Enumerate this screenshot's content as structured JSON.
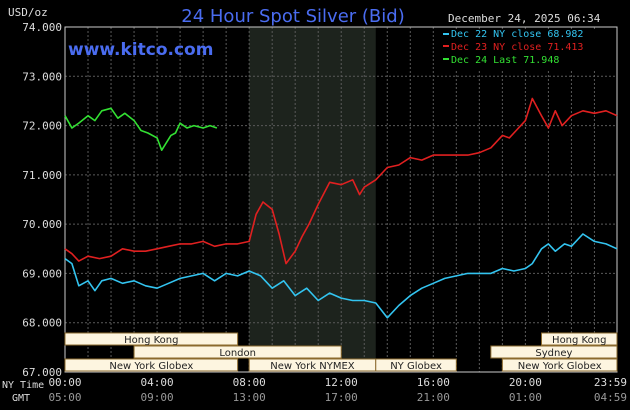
{
  "chart_data": {
    "type": "line",
    "title": "24 Hour Spot Silver (Bid)",
    "watermark": "www.kitco.com",
    "timestamp": "December 24, 2025 06:34",
    "ylabel": "USD/oz",
    "ylim": [
      67.0,
      74.0
    ],
    "y_ticks": [
      "74.000",
      "73.000",
      "72.000",
      "71.000",
      "70.000",
      "69.000",
      "68.000",
      "67.000"
    ],
    "x_ticks": [
      "00:00",
      "04:00",
      "08:00",
      "12:00",
      "16:00",
      "20:00",
      "23:59"
    ],
    "x_ticks_gmt": [
      "05:00",
      "09:00",
      "13:00",
      "17:00",
      "21:00",
      "01:00",
      "04:59"
    ],
    "row_labels": {
      "ny": "NY Time",
      "gmt": "GMT"
    },
    "grid": true,
    "legend_position": "top-right",
    "colors": {
      "bg": "#000000",
      "grid": "#5a5a5a",
      "plot_border": "#cccccc",
      "title": "#4a6cf0",
      "watermark": "#4a6cf0",
      "axis_text": "#dddddd",
      "session_fill": "#fdf5e0",
      "session_text": "#222222",
      "session_border": "#8b6a2e",
      "nymex_shade": "#1d231d"
    },
    "series": [
      {
        "name": "Dec 22 NY close 68.982",
        "color": "#33c4f0",
        "x": [
          0.0,
          0.3,
          0.6,
          1.0,
          1.3,
          1.6,
          2.0,
          2.5,
          3.0,
          3.5,
          4.0,
          4.5,
          5.0,
          5.5,
          6.0,
          6.5,
          7.0,
          7.5,
          8.0,
          8.5,
          9.0,
          9.5,
          10.0,
          10.5,
          11.0,
          11.5,
          12.0,
          12.5,
          13.0,
          13.5,
          14.0,
          14.5,
          15.0,
          15.5,
          16.0,
          16.5,
          17.0,
          17.5,
          18.0,
          18.5,
          19.0,
          19.5,
          20.0,
          20.3,
          20.7,
          21.0,
          21.3,
          21.7,
          22.0,
          22.5,
          23.0,
          23.5,
          23.98
        ],
        "y": [
          69.3,
          69.2,
          68.75,
          68.85,
          68.65,
          68.85,
          68.9,
          68.8,
          68.85,
          68.75,
          68.7,
          68.8,
          68.9,
          68.95,
          69.0,
          68.85,
          69.0,
          68.95,
          69.05,
          68.95,
          68.7,
          68.85,
          68.55,
          68.7,
          68.45,
          68.6,
          68.5,
          68.45,
          68.45,
          68.4,
          68.1,
          68.35,
          68.55,
          68.7,
          68.8,
          68.9,
          68.95,
          69.0,
          69.0,
          69.0,
          69.1,
          69.05,
          69.1,
          69.2,
          69.5,
          69.6,
          69.45,
          69.6,
          69.55,
          69.8,
          69.65,
          69.6,
          69.5
        ]
      },
      {
        "name": "Dec 23 NY close 71.413",
        "color": "#e02020",
        "x": [
          0.0,
          0.3,
          0.6,
          1.0,
          1.5,
          2.0,
          2.5,
          3.0,
          3.5,
          4.0,
          4.5,
          5.0,
          5.5,
          6.0,
          6.5,
          7.0,
          7.5,
          8.0,
          8.3,
          8.6,
          9.0,
          9.3,
          9.6,
          10.0,
          10.3,
          10.6,
          11.0,
          11.5,
          12.0,
          12.5,
          12.8,
          13.0,
          13.5,
          14.0,
          14.5,
          15.0,
          15.5,
          16.0,
          16.5,
          17.0,
          17.5,
          18.0,
          18.5,
          19.0,
          19.3,
          19.6,
          20.0,
          20.3,
          20.7,
          21.0,
          21.3,
          21.6,
          22.0,
          22.5,
          23.0,
          23.5,
          23.98
        ],
        "y": [
          69.5,
          69.4,
          69.25,
          69.35,
          69.3,
          69.35,
          69.5,
          69.45,
          69.45,
          69.5,
          69.55,
          69.6,
          69.6,
          69.65,
          69.55,
          69.6,
          69.6,
          69.65,
          70.2,
          70.45,
          70.3,
          69.8,
          69.2,
          69.45,
          69.75,
          70.0,
          70.4,
          70.85,
          70.8,
          70.9,
          70.6,
          70.75,
          70.9,
          71.15,
          71.2,
          71.35,
          71.3,
          71.4,
          71.4,
          71.4,
          71.4,
          71.45,
          71.55,
          71.8,
          71.75,
          71.9,
          72.1,
          72.55,
          72.2,
          71.95,
          72.3,
          72.0,
          72.2,
          72.3,
          72.25,
          72.3,
          72.2
        ]
      },
      {
        "name": "Dec 24 Last 71.948",
        "color": "#33e033",
        "x": [
          0.0,
          0.3,
          0.6,
          1.0,
          1.3,
          1.6,
          2.0,
          2.3,
          2.6,
          3.0,
          3.3,
          3.6,
          4.0,
          4.2,
          4.4,
          4.6,
          4.8,
          5.0,
          5.3,
          5.6,
          6.0,
          6.3,
          6.6
        ],
        "y": [
          72.2,
          71.95,
          72.05,
          72.2,
          72.1,
          72.3,
          72.35,
          72.15,
          72.25,
          72.1,
          71.9,
          71.85,
          71.75,
          71.5,
          71.65,
          71.8,
          71.85,
          72.05,
          71.95,
          72.0,
          71.95,
          72.0,
          71.95
        ]
      }
    ],
    "sessions": [
      {
        "label": "Hong Kong",
        "start": 0.0,
        "end": 7.5,
        "row": 0
      },
      {
        "label": "Hong Kong",
        "start": 20.7,
        "end": 23.98,
        "row": 0
      },
      {
        "label": "London",
        "start": 3.0,
        "end": 12.0,
        "row": 1
      },
      {
        "label": "Sydney",
        "start": 18.5,
        "end": 23.98,
        "row": 1
      },
      {
        "label": "New York Globex",
        "start": 0.0,
        "end": 7.5,
        "row": 2
      },
      {
        "label": "New York NYMEX",
        "start": 8.0,
        "end": 13.5,
        "row": 2
      },
      {
        "label": "NY Globex",
        "start": 13.5,
        "end": 17.0,
        "row": 2
      },
      {
        "label": "New York Globex",
        "start": 19.0,
        "end": 23.98,
        "row": 2
      }
    ],
    "nymex_shade": [
      8.0,
      13.5
    ]
  }
}
